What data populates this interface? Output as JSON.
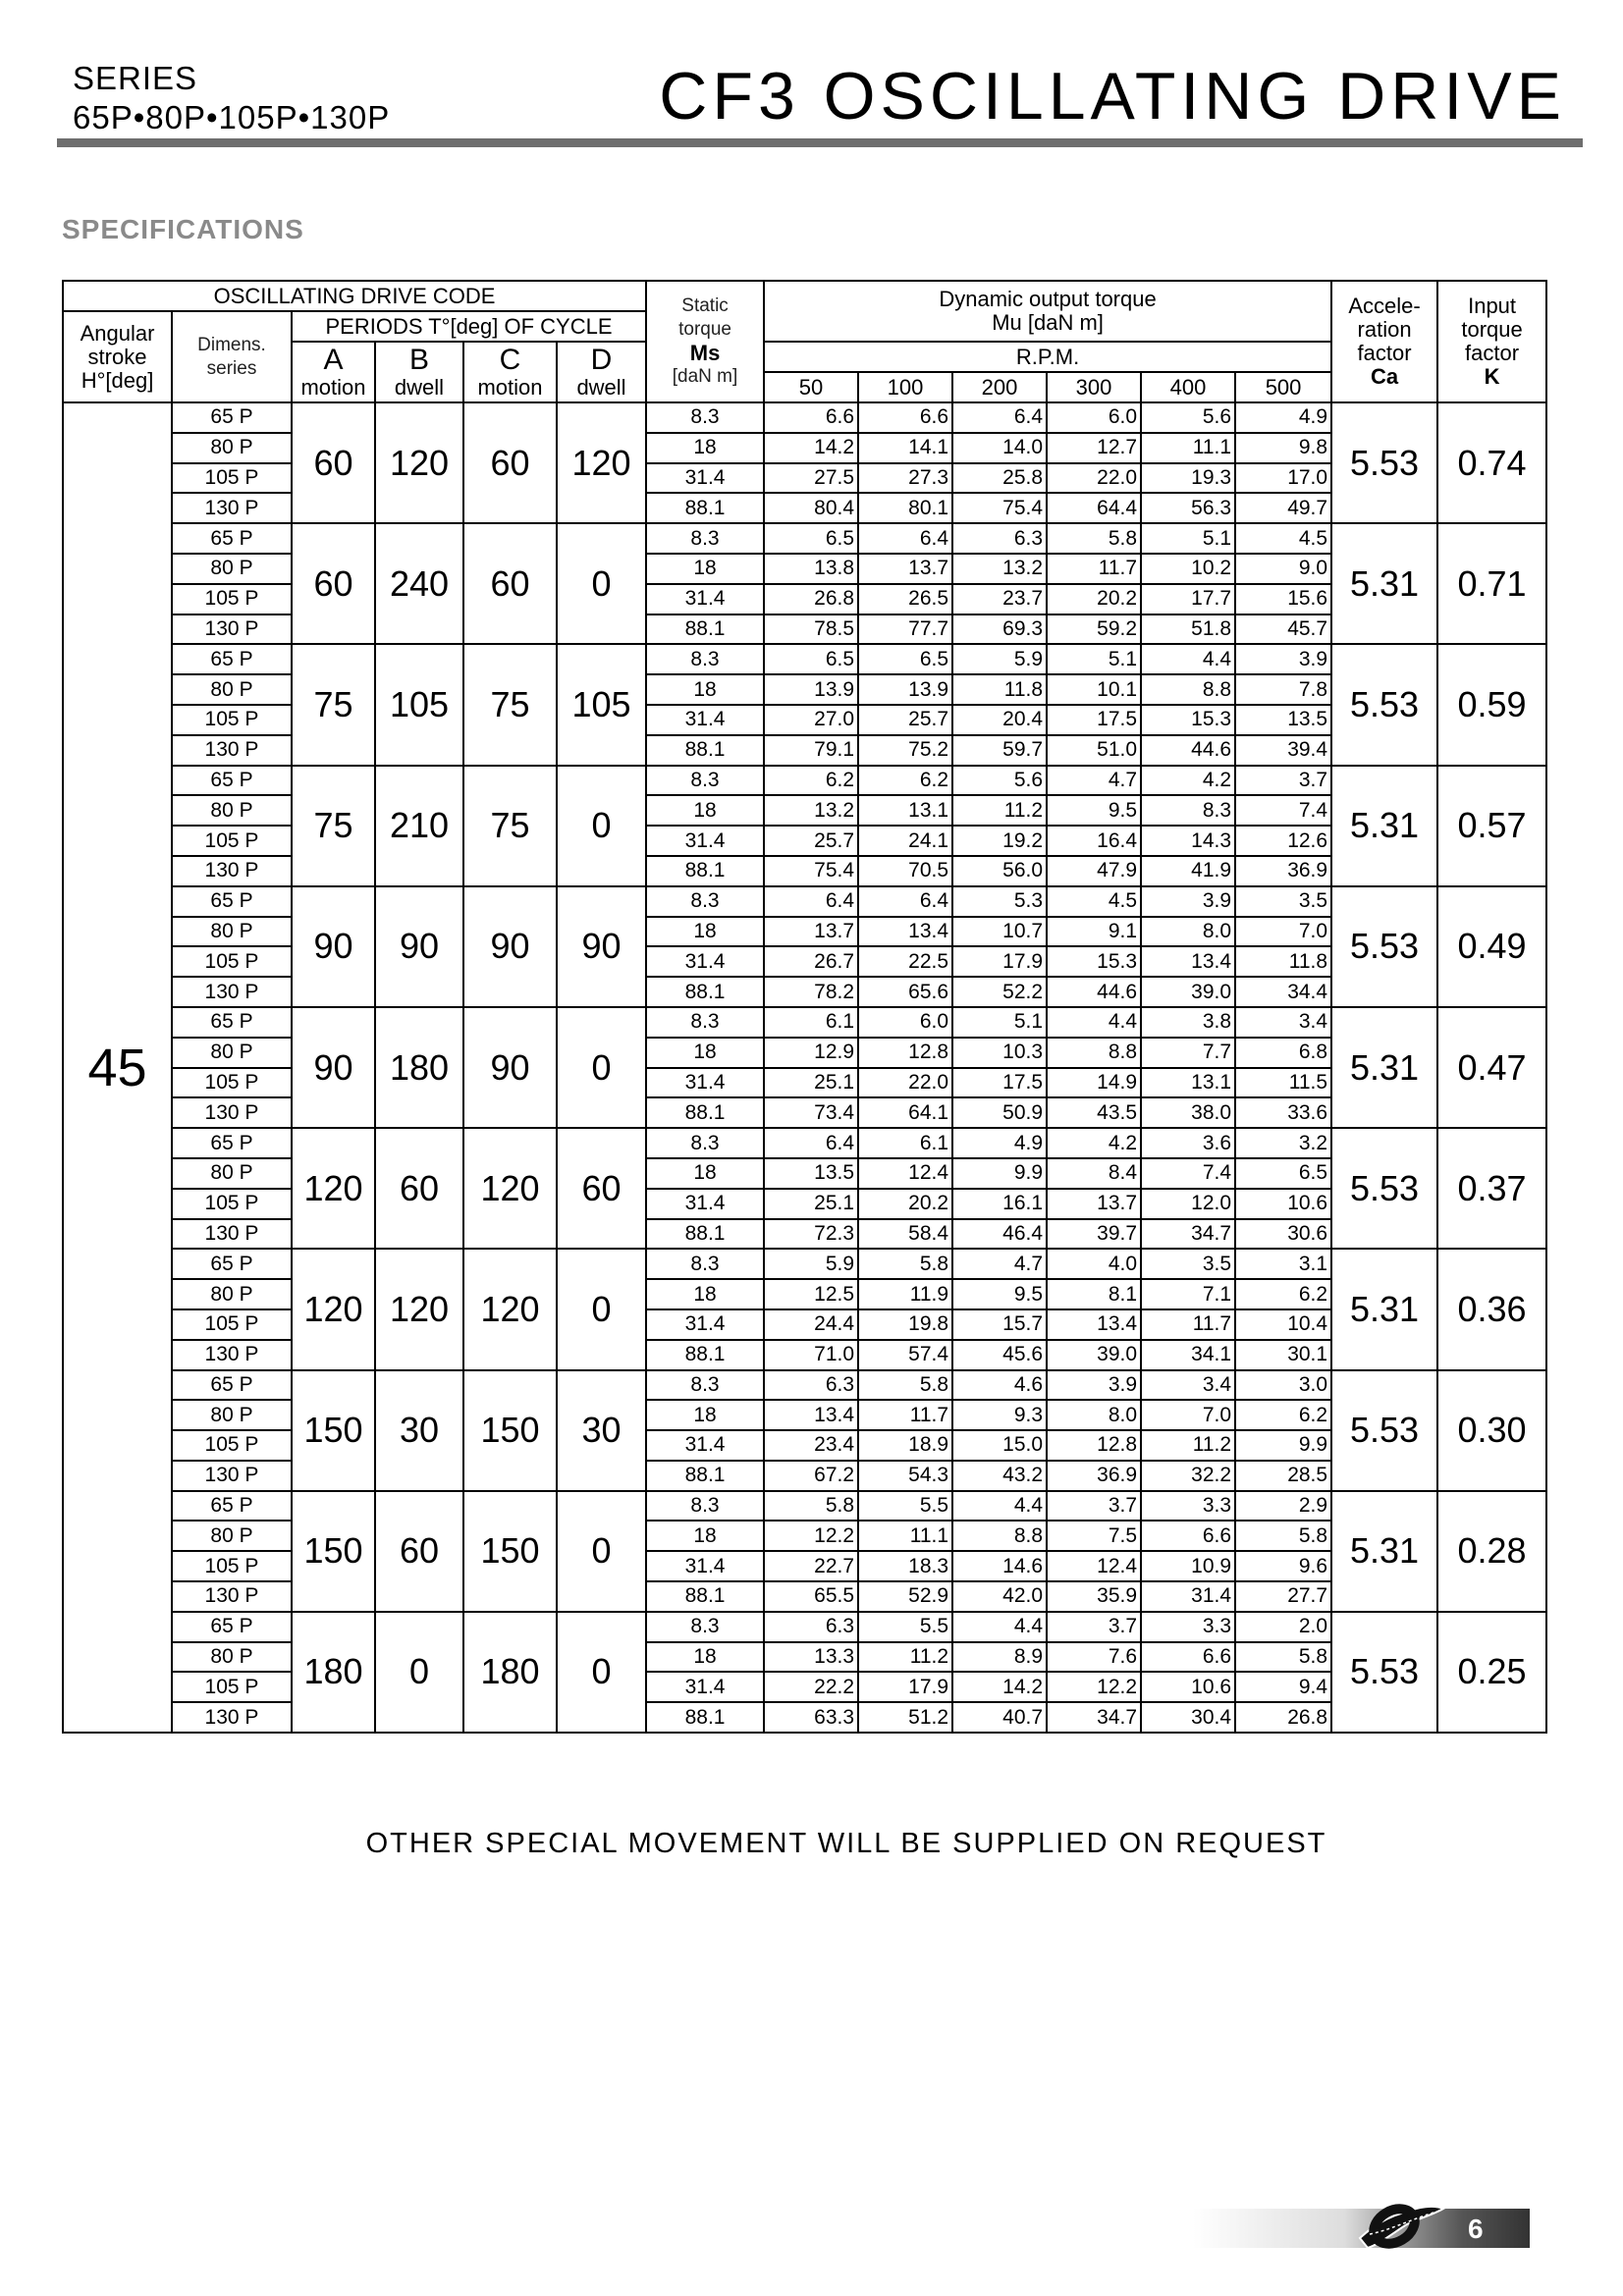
{
  "header": {
    "series_label": "SERIES",
    "series_models": "65P•80P•105P•130P",
    "title": "CF3 OSCILLATING DRIVE"
  },
  "section_title": "SPECIFICATIONS",
  "table_header": {
    "drive_code": "OSCILLATING DRIVE CODE",
    "angular_stroke": [
      "Angular",
      "stroke",
      "H°[deg]"
    ],
    "dimens_series": [
      "Dimens.",
      "series"
    ],
    "periods": "PERIODS T°[deg] OF CYCLE",
    "period_cols": [
      {
        "letter": "A",
        "type": "motion"
      },
      {
        "letter": "B",
        "type": "dwell"
      },
      {
        "letter": "C",
        "type": "motion"
      },
      {
        "letter": "D",
        "type": "dwell"
      }
    ],
    "static_torque": [
      "Static",
      "torque",
      "Ms",
      "[daN m]"
    ],
    "dynamic_torque": "Dynamic output torque",
    "mu_unit": "Mu [daN m]",
    "rpm": "R.P.M.",
    "rpm_values": [
      "50",
      "100",
      "200",
      "300",
      "400",
      "500"
    ],
    "accel_factor": [
      "Accele-",
      "ration",
      "factor",
      "Ca"
    ],
    "input_factor": [
      "Input",
      "torque",
      "factor",
      "K"
    ]
  },
  "angular_stroke_value": "45",
  "groups": [
    {
      "A": "60",
      "B": "120",
      "C": "60",
      "D": "120",
      "Ca": "5.53",
      "K": "0.74",
      "rows": [
        {
          "dim": "65 P",
          "ms": "8.3",
          "mu": [
            "6.6",
            "6.6",
            "6.4",
            "6.0",
            "5.6",
            "4.9"
          ]
        },
        {
          "dim": "80 P",
          "ms": "18",
          "mu": [
            "14.2",
            "14.1",
            "14.0",
            "12.7",
            "11.1",
            "9.8"
          ]
        },
        {
          "dim": "105 P",
          "ms": "31.4",
          "mu": [
            "27.5",
            "27.3",
            "25.8",
            "22.0",
            "19.3",
            "17.0"
          ]
        },
        {
          "dim": "130 P",
          "ms": "88.1",
          "mu": [
            "80.4",
            "80.1",
            "75.4",
            "64.4",
            "56.3",
            "49.7"
          ]
        }
      ]
    },
    {
      "A": "60",
      "B": "240",
      "C": "60",
      "D": "0",
      "Ca": "5.31",
      "K": "0.71",
      "rows": [
        {
          "dim": "65 P",
          "ms": "8.3",
          "mu": [
            "6.5",
            "6.4",
            "6.3",
            "5.8",
            "5.1",
            "4.5"
          ]
        },
        {
          "dim": "80 P",
          "ms": "18",
          "mu": [
            "13.8",
            "13.7",
            "13.2",
            "11.7",
            "10.2",
            "9.0"
          ]
        },
        {
          "dim": "105 P",
          "ms": "31.4",
          "mu": [
            "26.8",
            "26.5",
            "23.7",
            "20.2",
            "17.7",
            "15.6"
          ]
        },
        {
          "dim": "130 P",
          "ms": "88.1",
          "mu": [
            "78.5",
            "77.7",
            "69.3",
            "59.2",
            "51.8",
            "45.7"
          ]
        }
      ]
    },
    {
      "A": "75",
      "B": "105",
      "C": "75",
      "D": "105",
      "Ca": "5.53",
      "K": "0.59",
      "rows": [
        {
          "dim": "65 P",
          "ms": "8.3",
          "mu": [
            "6.5",
            "6.5",
            "5.9",
            "5.1",
            "4.4",
            "3.9"
          ]
        },
        {
          "dim": "80 P",
          "ms": "18",
          "mu": [
            "13.9",
            "13.9",
            "11.8",
            "10.1",
            "8.8",
            "7.8"
          ]
        },
        {
          "dim": "105 P",
          "ms": "31.4",
          "mu": [
            "27.0",
            "25.7",
            "20.4",
            "17.5",
            "15.3",
            "13.5"
          ]
        },
        {
          "dim": "130 P",
          "ms": "88.1",
          "mu": [
            "79.1",
            "75.2",
            "59.7",
            "51.0",
            "44.6",
            "39.4"
          ]
        }
      ]
    },
    {
      "A": "75",
      "B": "210",
      "C": "75",
      "D": "0",
      "Ca": "5.31",
      "K": "0.57",
      "rows": [
        {
          "dim": "65 P",
          "ms": "8.3",
          "mu": [
            "6.2",
            "6.2",
            "5.6",
            "4.7",
            "4.2",
            "3.7"
          ]
        },
        {
          "dim": "80 P",
          "ms": "18",
          "mu": [
            "13.2",
            "13.1",
            "11.2",
            "9.5",
            "8.3",
            "7.4"
          ]
        },
        {
          "dim": "105 P",
          "ms": "31.4",
          "mu": [
            "25.7",
            "24.1",
            "19.2",
            "16.4",
            "14.3",
            "12.6"
          ]
        },
        {
          "dim": "130 P",
          "ms": "88.1",
          "mu": [
            "75.4",
            "70.5",
            "56.0",
            "47.9",
            "41.9",
            "36.9"
          ]
        }
      ]
    },
    {
      "A": "90",
      "B": "90",
      "C": "90",
      "D": "90",
      "Ca": "5.53",
      "K": "0.49",
      "rows": [
        {
          "dim": "65 P",
          "ms": "8.3",
          "mu": [
            "6.4",
            "6.4",
            "5.3",
            "4.5",
            "3.9",
            "3.5"
          ]
        },
        {
          "dim": "80 P",
          "ms": "18",
          "mu": [
            "13.7",
            "13.4",
            "10.7",
            "9.1",
            "8.0",
            "7.0"
          ]
        },
        {
          "dim": "105 P",
          "ms": "31.4",
          "mu": [
            "26.7",
            "22.5",
            "17.9",
            "15.3",
            "13.4",
            "11.8"
          ]
        },
        {
          "dim": "130 P",
          "ms": "88.1",
          "mu": [
            "78.2",
            "65.6",
            "52.2",
            "44.6",
            "39.0",
            "34.4"
          ]
        }
      ]
    },
    {
      "A": "90",
      "B": "180",
      "C": "90",
      "D": "0",
      "Ca": "5.31",
      "K": "0.47",
      "rows": [
        {
          "dim": "65 P",
          "ms": "8.3",
          "mu": [
            "6.1",
            "6.0",
            "5.1",
            "4.4",
            "3.8",
            "3.4"
          ]
        },
        {
          "dim": "80 P",
          "ms": "18",
          "mu": [
            "12.9",
            "12.8",
            "10.3",
            "8.8",
            "7.7",
            "6.8"
          ]
        },
        {
          "dim": "105 P",
          "ms": "31.4",
          "mu": [
            "25.1",
            "22.0",
            "17.5",
            "14.9",
            "13.1",
            "11.5"
          ]
        },
        {
          "dim": "130 P",
          "ms": "88.1",
          "mu": [
            "73.4",
            "64.1",
            "50.9",
            "43.5",
            "38.0",
            "33.6"
          ]
        }
      ]
    },
    {
      "A": "120",
      "B": "60",
      "C": "120",
      "D": "60",
      "Ca": "5.53",
      "K": "0.37",
      "rows": [
        {
          "dim": "65 P",
          "ms": "8.3",
          "mu": [
            "6.4",
            "6.1",
            "4.9",
            "4.2",
            "3.6",
            "3.2"
          ]
        },
        {
          "dim": "80 P",
          "ms": "18",
          "mu": [
            "13.5",
            "12.4",
            "9.9",
            "8.4",
            "7.4",
            "6.5"
          ]
        },
        {
          "dim": "105 P",
          "ms": "31.4",
          "mu": [
            "25.1",
            "20.2",
            "16.1",
            "13.7",
            "12.0",
            "10.6"
          ]
        },
        {
          "dim": "130 P",
          "ms": "88.1",
          "mu": [
            "72.3",
            "58.4",
            "46.4",
            "39.7",
            "34.7",
            "30.6"
          ]
        }
      ]
    },
    {
      "A": "120",
      "B": "120",
      "C": "120",
      "D": "0",
      "Ca": "5.31",
      "K": "0.36",
      "rows": [
        {
          "dim": "65 P",
          "ms": "8.3",
          "mu": [
            "5.9",
            "5.8",
            "4.7",
            "4.0",
            "3.5",
            "3.1"
          ]
        },
        {
          "dim": "80 P",
          "ms": "18",
          "mu": [
            "12.5",
            "11.9",
            "9.5",
            "8.1",
            "7.1",
            "6.2"
          ]
        },
        {
          "dim": "105 P",
          "ms": "31.4",
          "mu": [
            "24.4",
            "19.8",
            "15.7",
            "13.4",
            "11.7",
            "10.4"
          ]
        },
        {
          "dim": "130 P",
          "ms": "88.1",
          "mu": [
            "71.0",
            "57.4",
            "45.6",
            "39.0",
            "34.1",
            "30.1"
          ]
        }
      ]
    },
    {
      "A": "150",
      "B": "30",
      "C": "150",
      "D": "30",
      "Ca": "5.53",
      "K": "0.30",
      "rows": [
        {
          "dim": "65 P",
          "ms": "8.3",
          "mu": [
            "6.3",
            "5.8",
            "4.6",
            "3.9",
            "3.4",
            "3.0"
          ]
        },
        {
          "dim": "80 P",
          "ms": "18",
          "mu": [
            "13.4",
            "11.7",
            "9.3",
            "8.0",
            "7.0",
            "6.2"
          ]
        },
        {
          "dim": "105 P",
          "ms": "31.4",
          "mu": [
            "23.4",
            "18.9",
            "15.0",
            "12.8",
            "11.2",
            "9.9"
          ]
        },
        {
          "dim": "130 P",
          "ms": "88.1",
          "mu": [
            "67.2",
            "54.3",
            "43.2",
            "36.9",
            "32.2",
            "28.5"
          ]
        }
      ]
    },
    {
      "A": "150",
      "B": "60",
      "C": "150",
      "D": "0",
      "Ca": "5.31",
      "K": "0.28",
      "rows": [
        {
          "dim": "65 P",
          "ms": "8.3",
          "mu": [
            "5.8",
            "5.5",
            "4.4",
            "3.7",
            "3.3",
            "2.9"
          ]
        },
        {
          "dim": "80 P",
          "ms": "18",
          "mu": [
            "12.2",
            "11.1",
            "8.8",
            "7.5",
            "6.6",
            "5.8"
          ]
        },
        {
          "dim": "105 P",
          "ms": "31.4",
          "mu": [
            "22.7",
            "18.3",
            "14.6",
            "12.4",
            "10.9",
            "9.6"
          ]
        },
        {
          "dim": "130 P",
          "ms": "88.1",
          "mu": [
            "65.5",
            "52.9",
            "42.0",
            "35.9",
            "31.4",
            "27.7"
          ]
        }
      ]
    },
    {
      "A": "180",
      "B": "0",
      "C": "180",
      "D": "0",
      "Ca": "5.53",
      "K": "0.25",
      "rows": [
        {
          "dim": "65 P",
          "ms": "8.3",
          "mu": [
            "6.3",
            "5.5",
            "4.4",
            "3.7",
            "3.3",
            "2.0"
          ]
        },
        {
          "dim": "80 P",
          "ms": "18",
          "mu": [
            "13.3",
            "11.2",
            "8.9",
            "7.6",
            "6.6",
            "5.8"
          ]
        },
        {
          "dim": "105 P",
          "ms": "31.4",
          "mu": [
            "22.2",
            "17.9",
            "14.2",
            "12.2",
            "10.6",
            "9.4"
          ]
        },
        {
          "dim": "130 P",
          "ms": "88.1",
          "mu": [
            "63.3",
            "51.2",
            "40.7",
            "34.7",
            "30.4",
            "26.8"
          ]
        }
      ]
    }
  ],
  "footer_note": "OTHER SPECIAL MOVEMENT WILL BE SUPPLIED ON REQUEST",
  "page_number": "6",
  "logo_icon": "interlaced-ribbon-logo"
}
